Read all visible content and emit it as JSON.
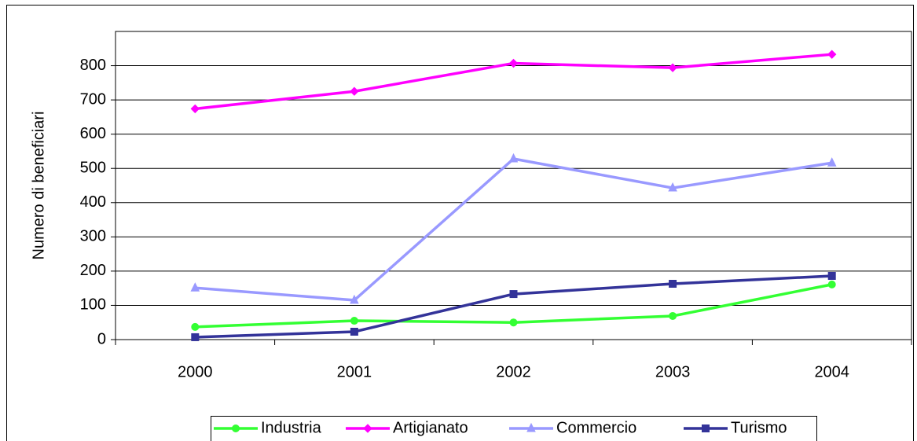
{
  "chart_data": {
    "type": "line",
    "y_label": "Numero di  beneficiari",
    "categories": [
      "2000",
      "2001",
      "2002",
      "2003",
      "2004"
    ],
    "series": [
      {
        "name": "Industria",
        "color": "#33ff33",
        "marker": "circle",
        "values": [
          37,
          55,
          50,
          69,
          161
        ]
      },
      {
        "name": "Artigianato",
        "color": "#ff00ff",
        "marker": "diamond",
        "values": [
          674,
          725,
          807,
          794,
          833
        ]
      },
      {
        "name": "Commercio",
        "color": "#9999ff",
        "marker": "triangle",
        "values": [
          151,
          115,
          528,
          443,
          516
        ]
      },
      {
        "name": "Turismo",
        "color": "#333399",
        "marker": "square",
        "values": [
          7,
          23,
          133,
          163,
          186
        ]
      }
    ],
    "ylim": [
      0,
      900
    ],
    "yticks": [
      0,
      100,
      200,
      300,
      400,
      500,
      600,
      700,
      800
    ],
    "grid": true
  }
}
